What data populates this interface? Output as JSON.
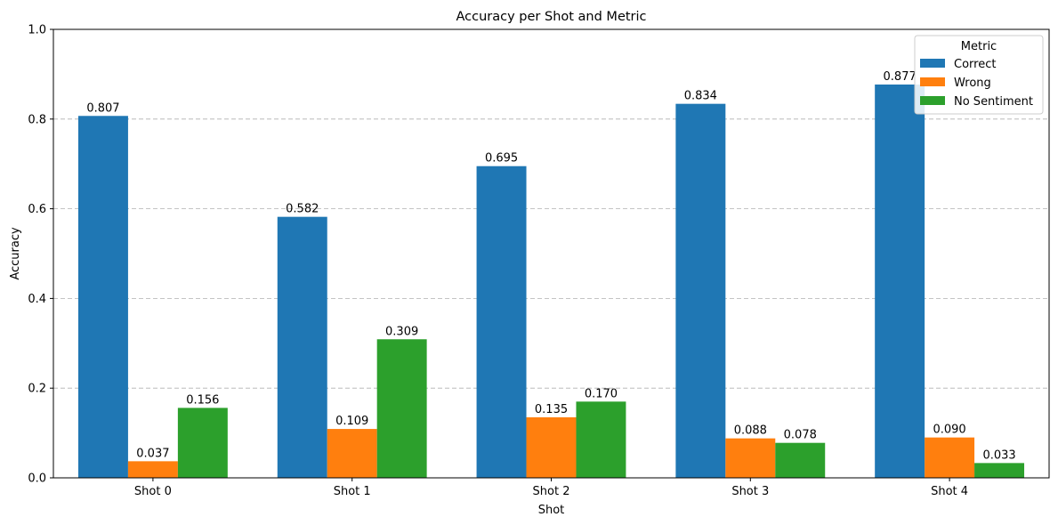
{
  "chart_data": {
    "type": "bar",
    "title": "Accuracy per Shot and Metric",
    "xlabel": "Shot",
    "ylabel": "Accuracy",
    "ylim": [
      0,
      1.0
    ],
    "yticks": [
      "0.0",
      "0.2",
      "0.4",
      "0.6",
      "0.8",
      "1.0"
    ],
    "ytick_values": [
      0,
      0.2,
      0.4,
      0.6,
      0.8,
      1.0
    ],
    "grid": "y-dashed",
    "categories": [
      "Shot 0",
      "Shot 1",
      "Shot 2",
      "Shot 3",
      "Shot 4"
    ],
    "legend": {
      "title": "Metric",
      "placement": "top-right"
    },
    "series": [
      {
        "name": "Correct",
        "color": "#1f77b4",
        "values": [
          0.807,
          0.582,
          0.695,
          0.834,
          0.877
        ],
        "labels": [
          "0.807",
          "0.582",
          "0.695",
          "0.834",
          "0.877"
        ]
      },
      {
        "name": "Wrong",
        "color": "#ff7f0e",
        "values": [
          0.037,
          0.109,
          0.135,
          0.088,
          0.09
        ],
        "labels": [
          "0.037",
          "0.109",
          "0.135",
          "0.088",
          "0.090"
        ]
      },
      {
        "name": "No Sentiment",
        "color": "#2ca02c",
        "values": [
          0.156,
          0.309,
          0.17,
          0.078,
          0.033
        ],
        "labels": [
          "0.156",
          "0.309",
          "0.170",
          "0.078",
          "0.033"
        ]
      }
    ]
  }
}
